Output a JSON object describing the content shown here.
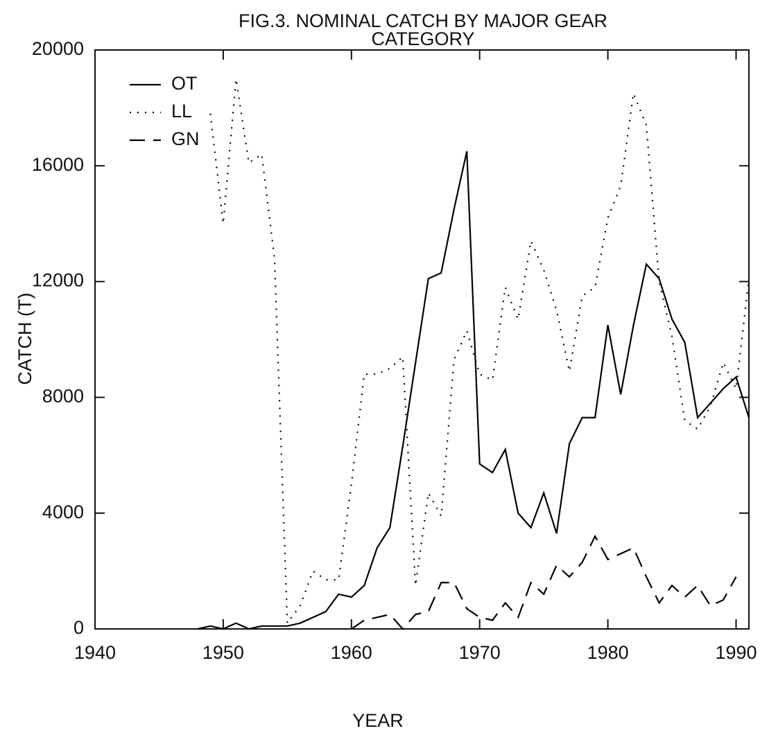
{
  "chart_data": {
    "type": "line",
    "title": [
      "FIG.3.  NOMINAL CATCH BY MAJOR GEAR",
      "CATEGORY"
    ],
    "x_label": "YEAR",
    "y_label": "CATCH (T)",
    "x": [
      1948,
      1949,
      1950,
      1951,
      1952,
      1953,
      1954,
      1955,
      1956,
      1957,
      1958,
      1959,
      1960,
      1961,
      1962,
      1963,
      1964,
      1965,
      1966,
      1967,
      1968,
      1969,
      1970,
      1971,
      1972,
      1973,
      1974,
      1975,
      1976,
      1977,
      1978,
      1979,
      1980,
      1981,
      1982,
      1983,
      1984,
      1985,
      1986,
      1987,
      1988,
      1989,
      1990,
      1991
    ],
    "series": [
      {
        "name": "OT",
        "color": "#000000",
        "dash": "solid",
        "values": [
          0,
          100,
          0,
          200,
          0,
          100,
          100,
          100,
          200,
          400,
          600,
          1200,
          1100,
          1500,
          2800,
          3500,
          6300,
          9200,
          12100,
          12300,
          14500,
          16500,
          5700,
          5400,
          6200,
          4000,
          3500,
          4700,
          3300,
          6400,
          7300,
          7300,
          10500,
          8100,
          10500,
          12600,
          12100,
          10700,
          9900,
          7300,
          7800,
          8300,
          8700,
          7300
        ]
      },
      {
        "name": "LL",
        "color": "#000000",
        "dash": "dotted",
        "values": [
          null,
          17800,
          14000,
          19000,
          16100,
          16400,
          12800,
          200,
          800,
          2000,
          1700,
          1700,
          5000,
          8800,
          8800,
          9000,
          9400,
          1500,
          4700,
          3900,
          9300,
          10300,
          8800,
          8600,
          11800,
          10700,
          13400,
          12400,
          11000,
          8900,
          11500,
          11800,
          14200,
          15300,
          18500,
          17400,
          12000,
          10100,
          7200,
          6900,
          7700,
          9200,
          8300,
          12100
        ]
      },
      {
        "name": "GN",
        "color": "#000000",
        "dash": "dashed",
        "values": [
          null,
          null,
          null,
          null,
          null,
          null,
          null,
          null,
          null,
          null,
          null,
          null,
          0,
          300,
          400,
          500,
          0,
          500,
          600,
          1600,
          1600,
          700,
          400,
          300,
          900,
          400,
          1600,
          1200,
          2200,
          1800,
          2300,
          3200,
          2400,
          2600,
          2800,
          1800,
          900,
          1500,
          1100,
          1500,
          800,
          1000,
          1800,
          null
        ]
      }
    ],
    "xlim": [
      1940,
      1991
    ],
    "ylim": [
      0,
      20000
    ],
    "xticks": [
      1940,
      1950,
      1960,
      1970,
      1980,
      1990
    ],
    "yticks": [
      0,
      4000,
      8000,
      12000,
      16000,
      20000
    ],
    "legend": "upper-left"
  }
}
